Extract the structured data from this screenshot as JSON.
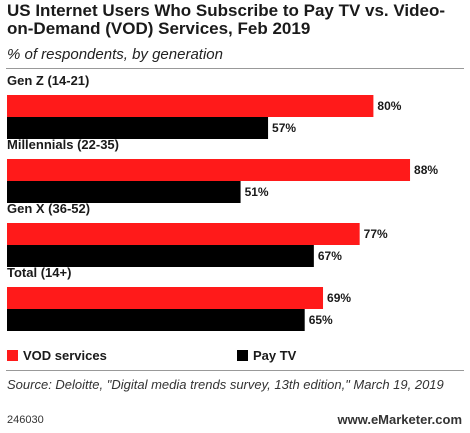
{
  "header": {
    "title": "US Internet Users Who Subscribe to Pay TV vs. Video-on-Demand (VOD) Services, Feb 2019",
    "subtitle": "% of respondents, by generation"
  },
  "chart_data": {
    "type": "bar",
    "orientation": "horizontal",
    "categories": [
      "Gen Z (14-21)",
      "Millennials (22-35)",
      "Gen X (36-52)",
      "Total (14+)"
    ],
    "series": [
      {
        "name": "VOD services",
        "color": "#ff1a1a",
        "values": [
          80,
          88,
          77,
          69
        ],
        "labels": [
          "80%",
          "88%",
          "77%",
          "69%"
        ]
      },
      {
        "name": "Pay TV",
        "color": "#000000",
        "values": [
          57,
          51,
          67,
          65
        ],
        "labels": [
          "57%",
          "51%",
          "67%",
          "65%"
        ]
      }
    ],
    "xlim": [
      0,
      100
    ],
    "grid": false,
    "legend": "bottom"
  },
  "legend": {
    "vod_label": "VOD services",
    "paytv_label": "Pay TV"
  },
  "footer": {
    "source": "Source: Deloitte, \"Digital media trends survey, 13th edition,\" March 19, 2019",
    "id": "246030",
    "brand": "www.eMarketer.com"
  }
}
